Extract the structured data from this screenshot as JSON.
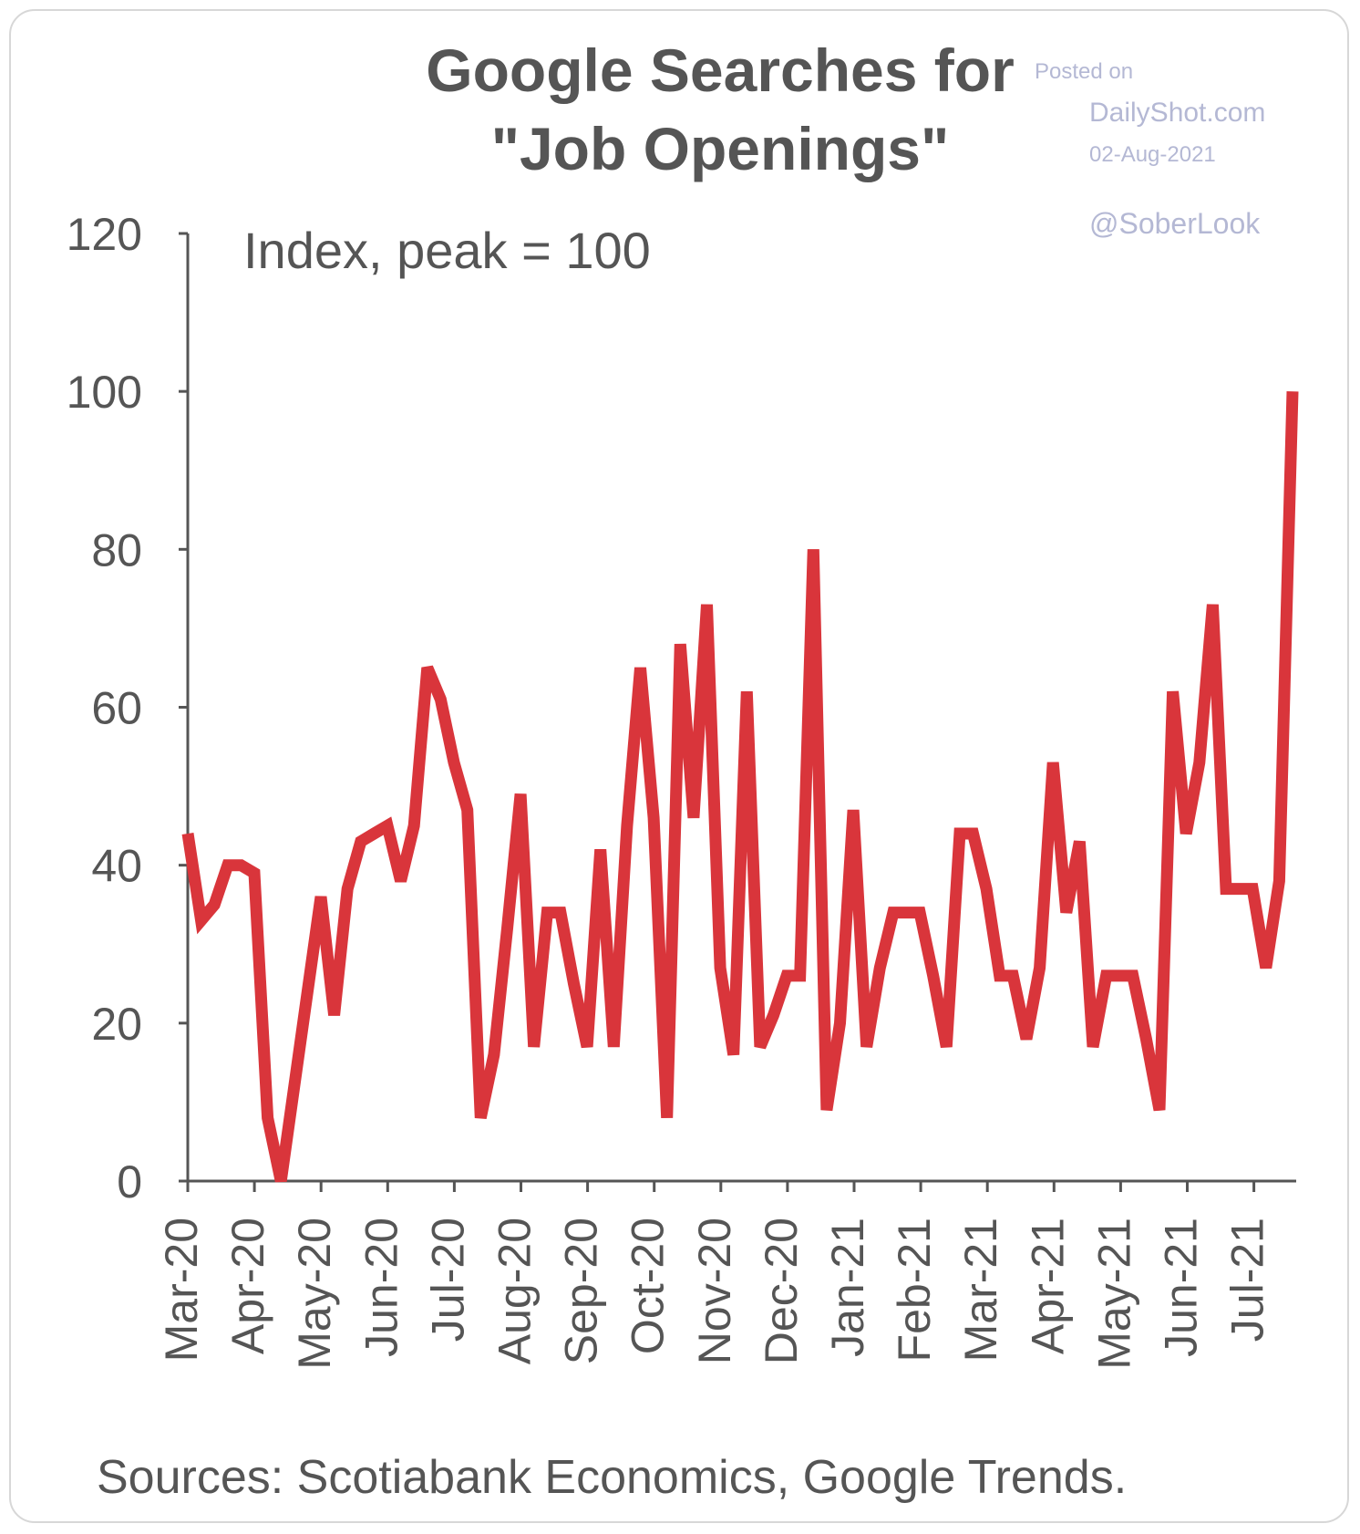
{
  "chart_data": {
    "type": "line",
    "title_line1": "Google Searches for",
    "title_line2": "\"Job Openings\"",
    "subtitle": "Index, peak = 100",
    "source": "Sources: Scotiabank Economics, Google Trends.",
    "ylim": [
      0,
      120
    ],
    "yticks": [
      "0",
      "20",
      "40",
      "60",
      "80",
      "100",
      "120"
    ],
    "xticks": [
      "Mar-20",
      "Apr-20",
      "May-20",
      "Jun-20",
      "Jul-20",
      "Aug-20",
      "Sep-20",
      "Oct-20",
      "Nov-20",
      "Dec-20",
      "Jan-21",
      "Feb-21",
      "Mar-21",
      "Apr-21",
      "May-21",
      "Jun-21",
      "Jul-21"
    ],
    "series": [
      {
        "name": "Google searches for job openings",
        "color": "#d9353b",
        "values": [
          44,
          33,
          35,
          40,
          40,
          39,
          8,
          0,
          12,
          24,
          36,
          21,
          37,
          43,
          44,
          45,
          38,
          45,
          65,
          61,
          53,
          47,
          8,
          16,
          32,
          49,
          17,
          34,
          34,
          25,
          17,
          42,
          17,
          45,
          65,
          46,
          8,
          68,
          46,
          73,
          27,
          16,
          62,
          17,
          21,
          26,
          26,
          80,
          9,
          20,
          47,
          17,
          27,
          34,
          34,
          34,
          26,
          17,
          44,
          44,
          37,
          26,
          26,
          18,
          27,
          53,
          34,
          43,
          17,
          26,
          26,
          26,
          18,
          9,
          62,
          44,
          53,
          73,
          37,
          37,
          37,
          27,
          38,
          100
        ]
      }
    ]
  },
  "watermark": {
    "posted_on": "Posted on",
    "site": "DailyShot.com",
    "date": "02-Aug-2021",
    "handle": "@SoberLook"
  }
}
